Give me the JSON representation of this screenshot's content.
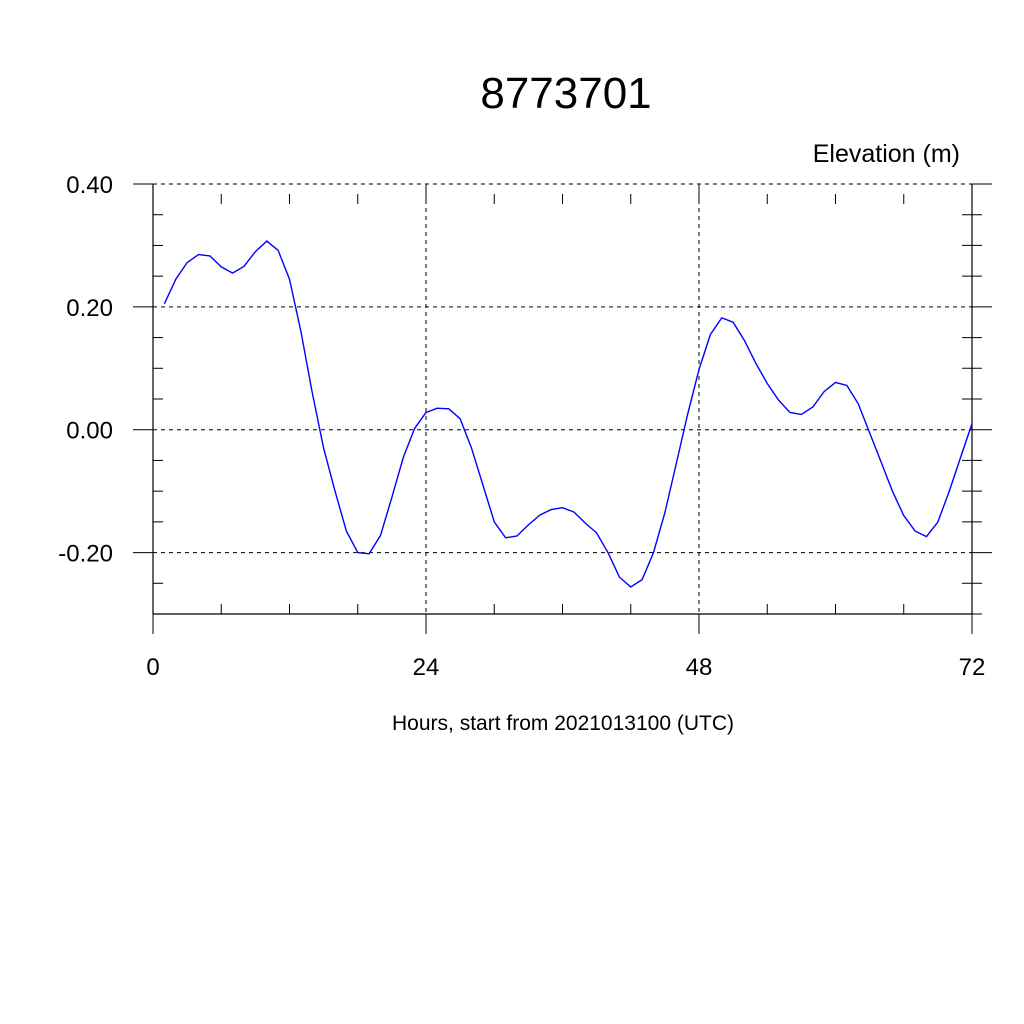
{
  "chart_data": {
    "type": "line",
    "title": "8773701",
    "unit_label": "Elevation (m)",
    "xlabel": "Hours, start from 2021013100 (UTC)",
    "xlim": [
      0,
      72
    ],
    "ylim": [
      -0.3,
      0.4
    ],
    "x_ticks": [
      0,
      24,
      48,
      72
    ],
    "x_tick_labels": [
      "0",
      "24",
      "48",
      "72"
    ],
    "y_ticks": [
      -0.2,
      0.0,
      0.2,
      0.4
    ],
    "y_tick_labels": [
      "-0.20",
      "0.00",
      "0.20",
      "0.40"
    ],
    "grid": true,
    "line_color": "#0000ff",
    "series": [
      {
        "x": [
          1,
          2,
          3,
          4,
          5,
          6,
          7,
          8,
          9,
          10,
          11,
          12,
          13,
          14,
          15,
          16,
          17,
          18,
          19,
          20,
          21,
          22,
          23,
          24,
          25,
          26,
          27,
          28,
          29,
          30,
          31,
          32,
          33,
          34,
          35,
          36,
          37,
          38,
          39,
          40,
          41,
          42,
          43,
          44,
          45,
          46,
          47,
          48,
          49,
          50,
          51,
          52,
          53,
          54,
          55,
          56,
          57,
          58,
          59,
          60,
          61,
          62,
          63,
          64,
          65,
          66,
          67,
          68,
          69,
          70,
          71,
          72
        ],
        "values": [
          0.205,
          0.245,
          0.272,
          0.285,
          0.283,
          0.265,
          0.255,
          0.266,
          0.29,
          0.307,
          0.292,
          0.245,
          0.16,
          0.06,
          -0.03,
          -0.1,
          -0.165,
          -0.2,
          -0.202,
          -0.172,
          -0.11,
          -0.045,
          0.002,
          0.028,
          0.035,
          0.034,
          0.018,
          -0.03,
          -0.09,
          -0.15,
          -0.176,
          -0.173,
          -0.155,
          -0.139,
          -0.13,
          -0.127,
          -0.134,
          -0.152,
          -0.168,
          -0.2,
          -0.24,
          -0.256,
          -0.244,
          -0.2,
          -0.135,
          -0.055,
          0.025,
          0.098,
          0.155,
          0.182,
          0.175,
          0.145,
          0.108,
          0.075,
          0.048,
          0.028,
          0.025,
          0.037,
          0.062,
          0.077,
          0.072,
          0.042,
          -0.005,
          -0.052,
          -0.1,
          -0.14,
          -0.165,
          -0.174,
          -0.15,
          -0.1,
          -0.045,
          0.01
        ]
      }
    ]
  }
}
